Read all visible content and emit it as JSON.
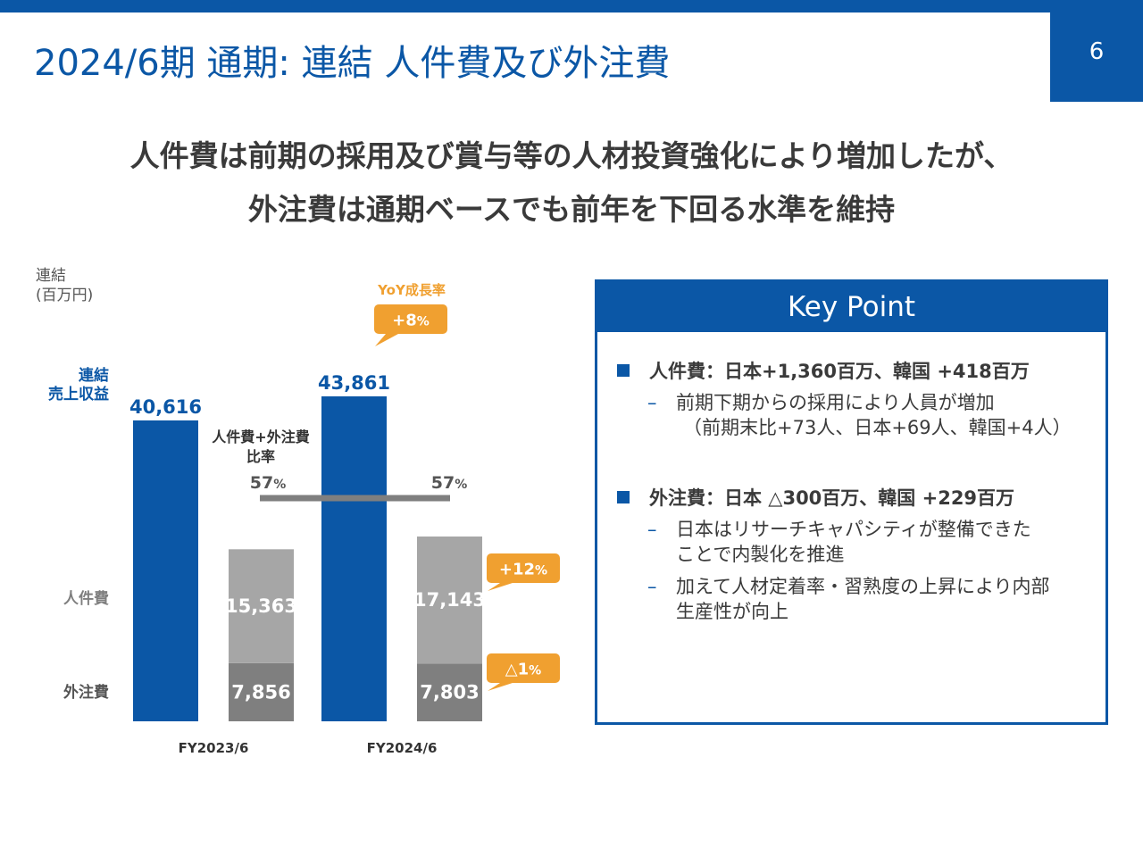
{
  "header": {
    "title": "2024/6期 通期: 連結 人件費及び外注費",
    "page_number": "6"
  },
  "headline": {
    "line1": "人件費は前期の採用及び賞与等の人材投資強化により増加したが、",
    "line2": "外注費は通期ベースでも前年を下回る水準を維持"
  },
  "chart_data": {
    "type": "bar",
    "title": "",
    "unit_label_line1": "連結",
    "unit_label_line2": "(百万円)",
    "categories": [
      "FY2023/6",
      "FY2024/6"
    ],
    "series": [
      {
        "name": "連結 売上収益",
        "values": [
          40616,
          43861
        ],
        "labels": [
          "40,616",
          "43,861"
        ]
      },
      {
        "name": "人件費",
        "values": [
          15363,
          17143
        ],
        "labels": [
          "15,363",
          "17,143"
        ]
      },
      {
        "name": "外注費",
        "values": [
          7856,
          7803
        ],
        "labels": [
          "7,856",
          "7,803"
        ]
      }
    ],
    "row_labels": {
      "revenue_line1": "連結",
      "revenue_line2": "売上収益",
      "personnel": "人件費",
      "outsourcing": "外注費"
    },
    "ratio": {
      "label_line1": "人件費+外注費",
      "label_line2": "比率",
      "values": [
        "57",
        "57"
      ],
      "unit": "%"
    },
    "yoy": {
      "title": "YoY成長率",
      "revenue": "+8",
      "personnel": "+12",
      "outsourcing": "△1",
      "unit": "%"
    },
    "colors": {
      "revenue": "#0b57a6",
      "personnel": "#a6a6a6",
      "outsourcing": "#7f7f7f",
      "ratio_line": "#7f7f7f",
      "callout": "#f0a030"
    }
  },
  "key_point": {
    "header": "Key Point",
    "item1": {
      "title": "人件費：日本+1,360百万、韓国 +418百万",
      "sub1_line1": "前期下期からの採用により人員が増加",
      "sub1_line2": "（前期末比+73人、日本+69人、韓国+4人）"
    },
    "item2": {
      "title": "外注費：日本 △300百万、韓国 +229百万",
      "sub1_line1": "日本はリサーチキャパシティが整備できた",
      "sub1_line2": "ことで内製化を推進",
      "sub2_line1": "加えて人材定着率・習熟度の上昇により内部",
      "sub2_line2": "生産性が向上"
    },
    "bullet_dash": "–"
  }
}
